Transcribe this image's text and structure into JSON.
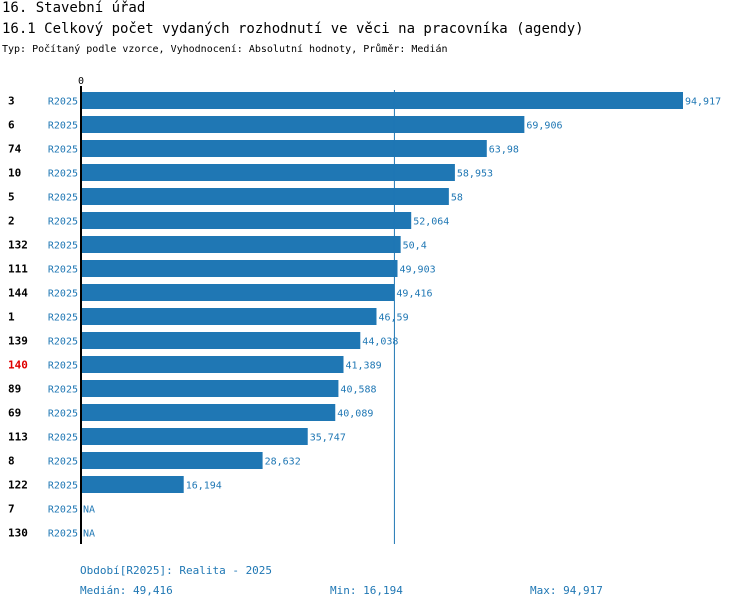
{
  "header": {
    "section_title": "16. Stavební úřad",
    "chart_title": "16.1 Celkový počet vydaných rozhodnutí ve věci na pracovníka (agendy)",
    "subtitle": "Typ: Počítaný podle vzorce, Vyhodnocení: Absolutní hodnoty, Průměr: Medián"
  },
  "colors": {
    "bar": "#1f77b4",
    "highlight_label": "#e00000",
    "axis": "#000000",
    "median_line": "#1f77b4"
  },
  "chart_data": {
    "type": "bar",
    "orientation": "horizontal",
    "x_axis_tick": "0",
    "xlim": [
      0,
      94.917
    ],
    "median_value": 49.416,
    "highlight_category": "140",
    "rows": [
      {
        "id": "3",
        "period": "R2025",
        "value": 94.917,
        "label": "94,917"
      },
      {
        "id": "6",
        "period": "R2025",
        "value": 69.906,
        "label": "69,906"
      },
      {
        "id": "74",
        "period": "R2025",
        "value": 63.98,
        "label": "63,98"
      },
      {
        "id": "10",
        "period": "R2025",
        "value": 58.953,
        "label": "58,953"
      },
      {
        "id": "5",
        "period": "R2025",
        "value": 58,
        "label": "58"
      },
      {
        "id": "2",
        "period": "R2025",
        "value": 52.064,
        "label": "52,064"
      },
      {
        "id": "132",
        "period": "R2025",
        "value": 50.4,
        "label": "50,4"
      },
      {
        "id": "111",
        "period": "R2025",
        "value": 49.903,
        "label": "49,903"
      },
      {
        "id": "144",
        "period": "R2025",
        "value": 49.416,
        "label": "49,416"
      },
      {
        "id": "1",
        "period": "R2025",
        "value": 46.59,
        "label": "46,59"
      },
      {
        "id": "139",
        "period": "R2025",
        "value": 44.038,
        "label": "44,038"
      },
      {
        "id": "140",
        "period": "R2025",
        "value": 41.389,
        "label": "41,389"
      },
      {
        "id": "89",
        "period": "R2025",
        "value": 40.588,
        "label": "40,588"
      },
      {
        "id": "69",
        "period": "R2025",
        "value": 40.089,
        "label": "40,089"
      },
      {
        "id": "113",
        "period": "R2025",
        "value": 35.747,
        "label": "35,747"
      },
      {
        "id": "8",
        "period": "R2025",
        "value": 28.632,
        "label": "28,632"
      },
      {
        "id": "122",
        "period": "R2025",
        "value": 16.194,
        "label": "16,194"
      },
      {
        "id": "7",
        "period": "R2025",
        "value": null,
        "label": "NA"
      },
      {
        "id": "130",
        "period": "R2025",
        "value": null,
        "label": "NA"
      }
    ]
  },
  "footer": {
    "period_note": "Období[R2025]: Realita - 2025",
    "median": "Medián: 49,416",
    "min": "Min: 16,194",
    "max": "Max: 94,917"
  }
}
